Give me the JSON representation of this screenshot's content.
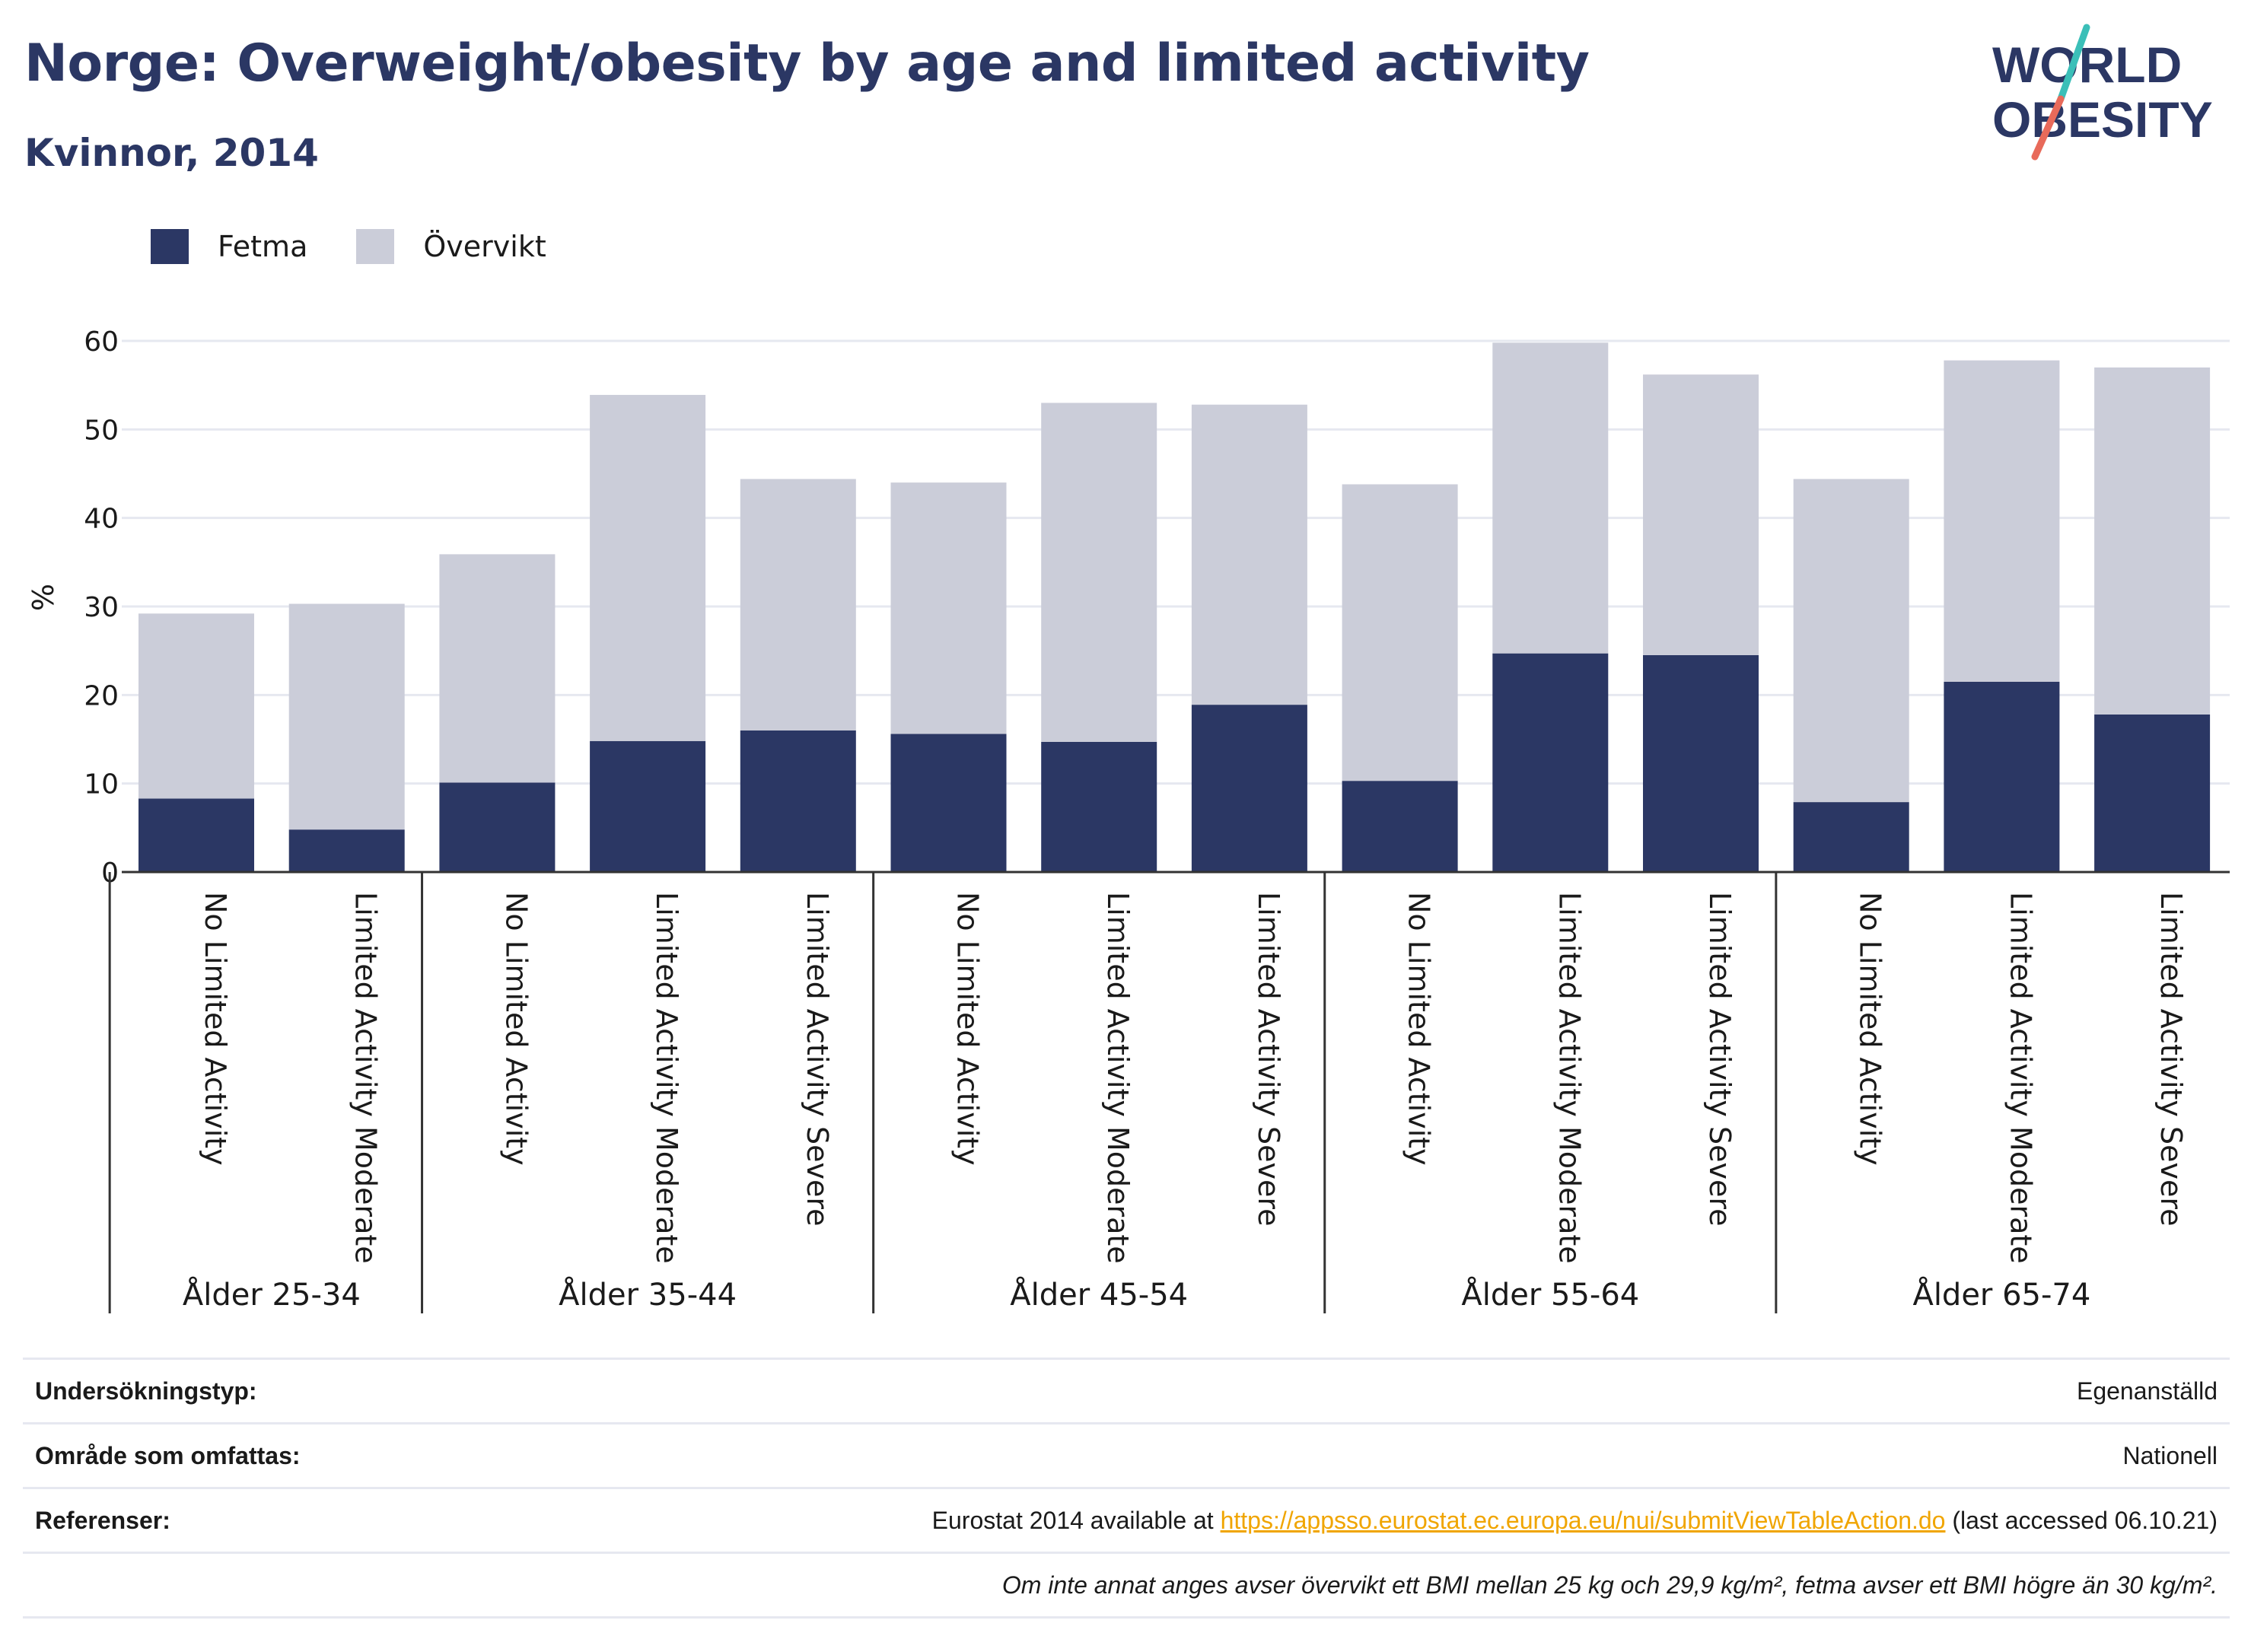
{
  "header": {
    "title": "Norge: Overweight/obesity by age and limited activity",
    "subtitle": "Kvinnor, 2014"
  },
  "logo": {
    "line1": "WORLD",
    "line2": "OBESITY",
    "colors": {
      "text": "#2b3764",
      "slash_top": "#3bbfb8",
      "slash_bottom": "#e86a5a"
    }
  },
  "colors": {
    "fetma": "#2b3764",
    "overvikt": "#cbcdd9",
    "grid": "#e6e8f0",
    "axis": "#333333"
  },
  "chart_data": {
    "type": "bar",
    "stacked": true,
    "ylabel": "%",
    "ylim": [
      0,
      60
    ],
    "yticks": [
      0,
      10,
      20,
      30,
      40,
      50,
      60
    ],
    "grid": true,
    "legend_position": "top-left",
    "groups": [
      {
        "label": "Ålder 25-34",
        "categories": [
          "No Limited Activity",
          "Limited Activity Moderate"
        ]
      },
      {
        "label": "Ålder 35-44",
        "categories": [
          "No Limited Activity",
          "Limited Activity Moderate",
          "Limited Activity Severe"
        ]
      },
      {
        "label": "Ålder 45-54",
        "categories": [
          "No Limited Activity",
          "Limited Activity Moderate",
          "Limited Activity Severe"
        ]
      },
      {
        "label": "Ålder 55-64",
        "categories": [
          "No Limited Activity",
          "Limited Activity Moderate",
          "Limited Activity Severe"
        ]
      },
      {
        "label": "Ålder 65-74",
        "categories": [
          "No Limited Activity",
          "Limited Activity Moderate",
          "Limited Activity Severe"
        ]
      }
    ],
    "series": [
      {
        "name": "Fetma",
        "values": [
          8.3,
          4.8,
          10.1,
          14.8,
          16.0,
          15.6,
          14.7,
          18.9,
          10.3,
          24.7,
          24.5,
          7.9,
          21.5,
          17.8
        ]
      },
      {
        "name": "Övervikt",
        "values": [
          20.9,
          25.5,
          25.8,
          39.1,
          28.4,
          28.4,
          38.3,
          33.9,
          33.5,
          35.1,
          31.7,
          36.5,
          36.3,
          39.2
        ]
      }
    ]
  },
  "info": {
    "rows": [
      {
        "label": "Undersökningstyp:",
        "value": "Egenanställd"
      },
      {
        "label": "Område som omfattas:",
        "value": "Nationell"
      },
      {
        "label": "Referenser:",
        "value_prefix": "Eurostat 2014 available at ",
        "link": "https://appsso.eurostat.ec.europa.eu/nui/submitViewTableAction.do",
        "value_suffix": " (last accessed 06.10.21)"
      }
    ],
    "note": "Om inte annat anges avser övervikt ett BMI mellan 25 kg och 29,9 kg/m², fetma avser ett BMI högre än 30 kg/m²."
  }
}
